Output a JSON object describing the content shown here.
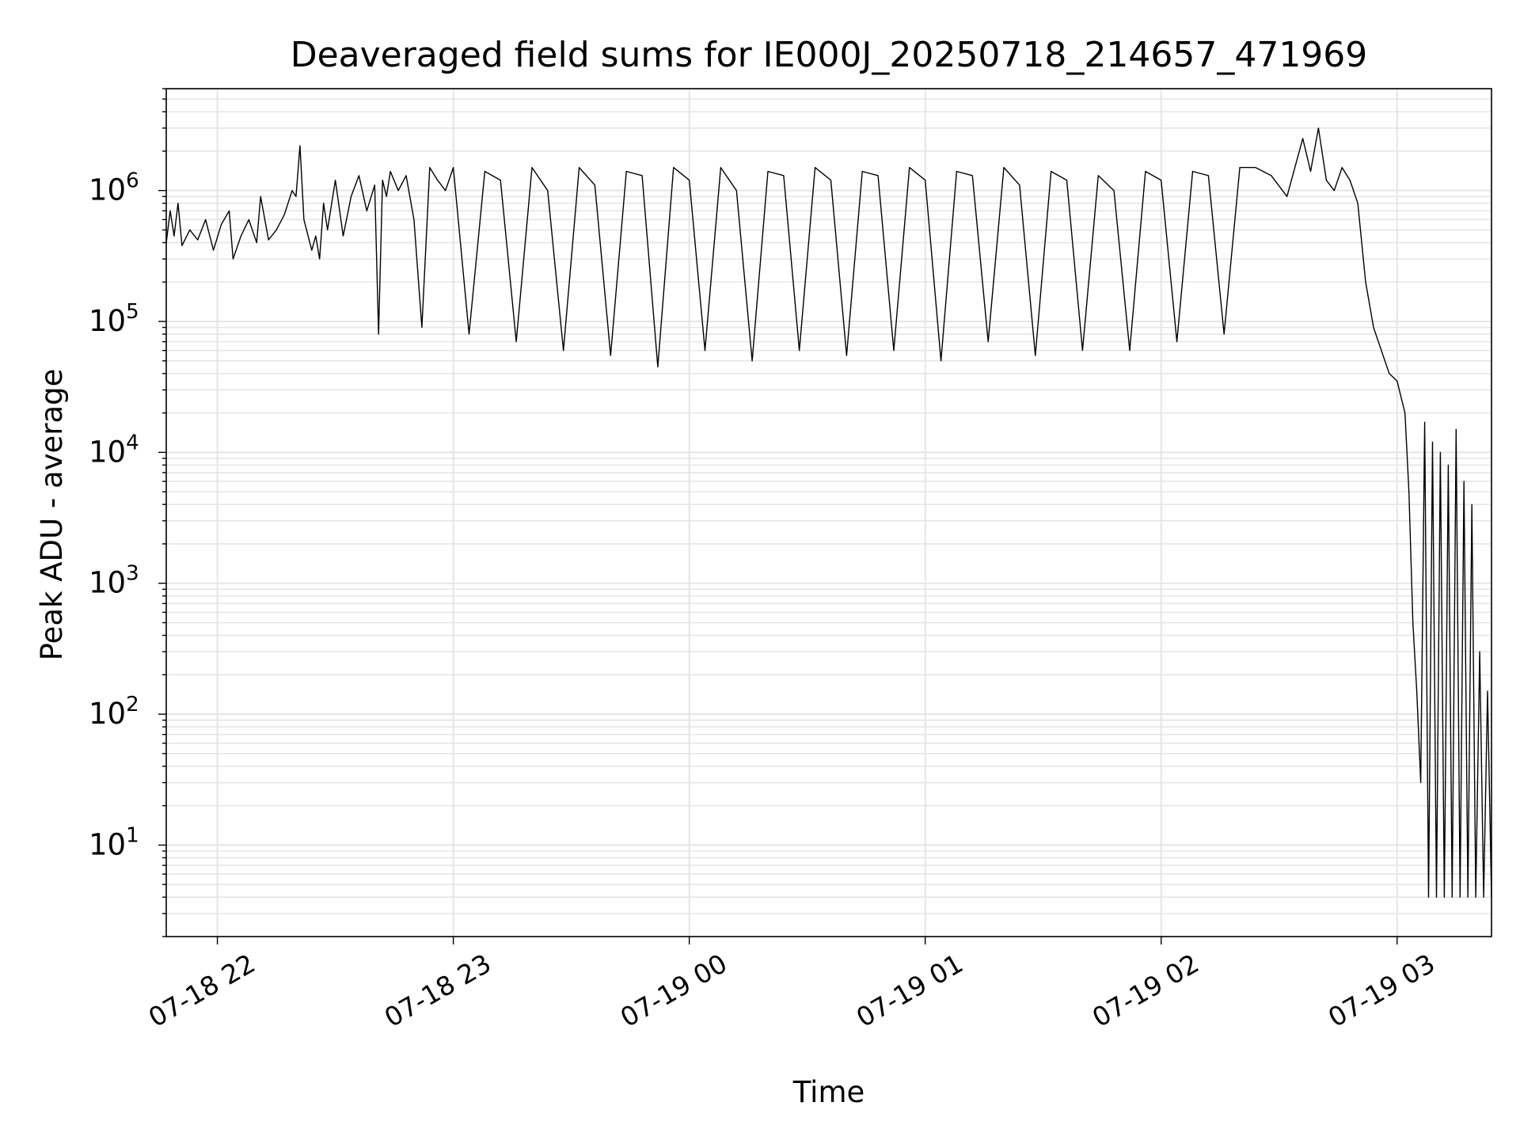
{
  "chart_data": {
    "type": "line",
    "title": "Deaveraged field sums for IE000J_20250718_214657_471969",
    "xlabel": "Time",
    "ylabel": "Peak ADU - average",
    "yscale": "log",
    "ylim": [
      2,
      6000000
    ],
    "xlim": [
      "2025-07-18T21:47:00",
      "2025-07-19T03:24:00"
    ],
    "grid": "major and minor",
    "legend": "none",
    "line_color": "#000000",
    "grid_color": "#e5e5e5",
    "x_ticks": [
      "07-18 22",
      "07-18 23",
      "07-19 00",
      "07-19 01",
      "07-19 02",
      "07-19 03"
    ],
    "x_tick_times": [
      "2025-07-18T22:00:00",
      "2025-07-18T23:00:00",
      "2025-07-19T00:00:00",
      "2025-07-19T01:00:00",
      "2025-07-19T02:00:00",
      "2025-07-19T03:00:00"
    ],
    "y_ticks": [
      {
        "base": "10",
        "exp": "1",
        "value": 10
      },
      {
        "base": "10",
        "exp": "2",
        "value": 100
      },
      {
        "base": "10",
        "exp": "3",
        "value": 1000
      },
      {
        "base": "10",
        "exp": "4",
        "value": 10000
      },
      {
        "base": "10",
        "exp": "5",
        "value": 100000
      },
      {
        "base": "10",
        "exp": "6",
        "value": 1000000
      }
    ],
    "series": [
      {
        "x": [
          "2025-07-18T21:47:00",
          "2025-07-18T21:48:00",
          "2025-07-18T21:49:00",
          "2025-07-18T21:50:00",
          "2025-07-18T21:51:00",
          "2025-07-18T21:53:00",
          "2025-07-18T21:55:00",
          "2025-07-18T21:57:00",
          "2025-07-18T21:59:00",
          "2025-07-18T22:01:00",
          "2025-07-18T22:03:00",
          "2025-07-18T22:04:00",
          "2025-07-18T22:06:00",
          "2025-07-18T22:08:00",
          "2025-07-18T22:10:00",
          "2025-07-18T22:11:00",
          "2025-07-18T22:13:00",
          "2025-07-18T22:15:00",
          "2025-07-18T22:17:00",
          "2025-07-18T22:19:00",
          "2025-07-18T22:20:00",
          "2025-07-18T22:21:00",
          "2025-07-18T22:22:00",
          "2025-07-18T22:24:00",
          "2025-07-18T22:25:00",
          "2025-07-18T22:26:00",
          "2025-07-18T22:27:00",
          "2025-07-18T22:28:00",
          "2025-07-18T22:30:00",
          "2025-07-18T22:32:00",
          "2025-07-18T22:34:00",
          "2025-07-18T22:36:00",
          "2025-07-18T22:38:00",
          "2025-07-18T22:40:00",
          "2025-07-18T22:41:00",
          "2025-07-18T22:42:00",
          "2025-07-18T22:43:00",
          "2025-07-18T22:44:00",
          "2025-07-18T22:46:00",
          "2025-07-18T22:48:00",
          "2025-07-18T22:50:00",
          "2025-07-18T22:52:00",
          "2025-07-18T22:54:00",
          "2025-07-18T22:56:00",
          "2025-07-18T22:58:00",
          "2025-07-18T23:00:00",
          "2025-07-18T23:04:00",
          "2025-07-18T23:08:00",
          "2025-07-18T23:12:00",
          "2025-07-18T23:16:00",
          "2025-07-18T23:20:00",
          "2025-07-18T23:24:00",
          "2025-07-18T23:28:00",
          "2025-07-18T23:32:00",
          "2025-07-18T23:36:00",
          "2025-07-18T23:40:00",
          "2025-07-18T23:44:00",
          "2025-07-18T23:48:00",
          "2025-07-18T23:52:00",
          "2025-07-18T23:56:00",
          "2025-07-19T00:00:00",
          "2025-07-19T00:04:00",
          "2025-07-19T00:08:00",
          "2025-07-19T00:12:00",
          "2025-07-19T00:16:00",
          "2025-07-19T00:20:00",
          "2025-07-19T00:24:00",
          "2025-07-19T00:28:00",
          "2025-07-19T00:32:00",
          "2025-07-19T00:36:00",
          "2025-07-19T00:40:00",
          "2025-07-19T00:44:00",
          "2025-07-19T00:48:00",
          "2025-07-19T00:52:00",
          "2025-07-19T00:56:00",
          "2025-07-19T01:00:00",
          "2025-07-19T01:04:00",
          "2025-07-19T01:08:00",
          "2025-07-19T01:12:00",
          "2025-07-19T01:16:00",
          "2025-07-19T01:20:00",
          "2025-07-19T01:24:00",
          "2025-07-19T01:28:00",
          "2025-07-19T01:32:00",
          "2025-07-19T01:36:00",
          "2025-07-19T01:40:00",
          "2025-07-19T01:44:00",
          "2025-07-19T01:48:00",
          "2025-07-19T01:52:00",
          "2025-07-19T01:56:00",
          "2025-07-19T02:00:00",
          "2025-07-19T02:04:00",
          "2025-07-19T02:08:00",
          "2025-07-19T02:12:00",
          "2025-07-19T02:16:00",
          "2025-07-19T02:20:00",
          "2025-07-19T02:24:00",
          "2025-07-19T02:28:00",
          "2025-07-19T02:32:00",
          "2025-07-19T02:36:00",
          "2025-07-19T02:38:00",
          "2025-07-19T02:40:00",
          "2025-07-19T02:42:00",
          "2025-07-19T02:44:00",
          "2025-07-19T02:46:00",
          "2025-07-19T02:48:00",
          "2025-07-19T02:50:00",
          "2025-07-19T02:52:00",
          "2025-07-19T02:54:00",
          "2025-07-19T02:56:00",
          "2025-07-19T02:58:00",
          "2025-07-19T03:00:00",
          "2025-07-19T03:02:00",
          "2025-07-19T03:03:00",
          "2025-07-19T03:04:00",
          "2025-07-19T03:05:00",
          "2025-07-19T03:06:00",
          "2025-07-19T03:07:00",
          "2025-07-19T03:08:00",
          "2025-07-19T03:09:00",
          "2025-07-19T03:10:00",
          "2025-07-19T03:11:00",
          "2025-07-19T03:12:00",
          "2025-07-19T03:13:00",
          "2025-07-19T03:14:00",
          "2025-07-19T03:15:00",
          "2025-07-19T03:16:00",
          "2025-07-19T03:17:00",
          "2025-07-19T03:18:00",
          "2025-07-19T03:19:00",
          "2025-07-19T03:20:00",
          "2025-07-19T03:21:00",
          "2025-07-19T03:22:00",
          "2025-07-19T03:23:00",
          "2025-07-19T03:24:00"
        ],
        "y": [
          400000,
          700000,
          450000,
          800000,
          380000,
          500000,
          420000,
          600000,
          350000,
          550000,
          700000,
          300000,
          450000,
          600000,
          400000,
          900000,
          420000,
          500000,
          650000,
          1000000,
          900000,
          2200000,
          600000,
          350000,
          450000,
          300000,
          800000,
          500000,
          1200000,
          450000,
          900000,
          1300000,
          700000,
          1100000,
          80000,
          1200000,
          900000,
          1400000,
          1000000,
          1300000,
          600000,
          90000,
          1500000,
          1200000,
          1000000,
          1500000,
          80000,
          1400000,
          1200000,
          70000,
          1500000,
          1000000,
          60000,
          1500000,
          1100000,
          55000,
          1400000,
          1300000,
          45000,
          1500000,
          1200000,
          60000,
          1500000,
          1000000,
          50000,
          1400000,
          1300000,
          60000,
          1500000,
          1200000,
          55000,
          1400000,
          1300000,
          60000,
          1500000,
          1200000,
          50000,
          1400000,
          1300000,
          70000,
          1500000,
          1100000,
          55000,
          1400000,
          1200000,
          60000,
          1300000,
          1000000,
          60000,
          1400000,
          1200000,
          70000,
          1400000,
          1300000,
          80000,
          1500000,
          1500000,
          1300000,
          900000,
          2500000,
          1400000,
          3000000,
          1200000,
          1000000,
          1500000,
          1200000,
          800000,
          200000,
          90000,
          60000,
          40000,
          35000,
          20000,
          5000,
          500,
          150,
          30,
          17000,
          4,
          12000,
          4,
          10000,
          4,
          8000,
          4,
          15000,
          4,
          6000,
          4,
          4000,
          4,
          300,
          4,
          150,
          4
        ]
      }
    ]
  }
}
